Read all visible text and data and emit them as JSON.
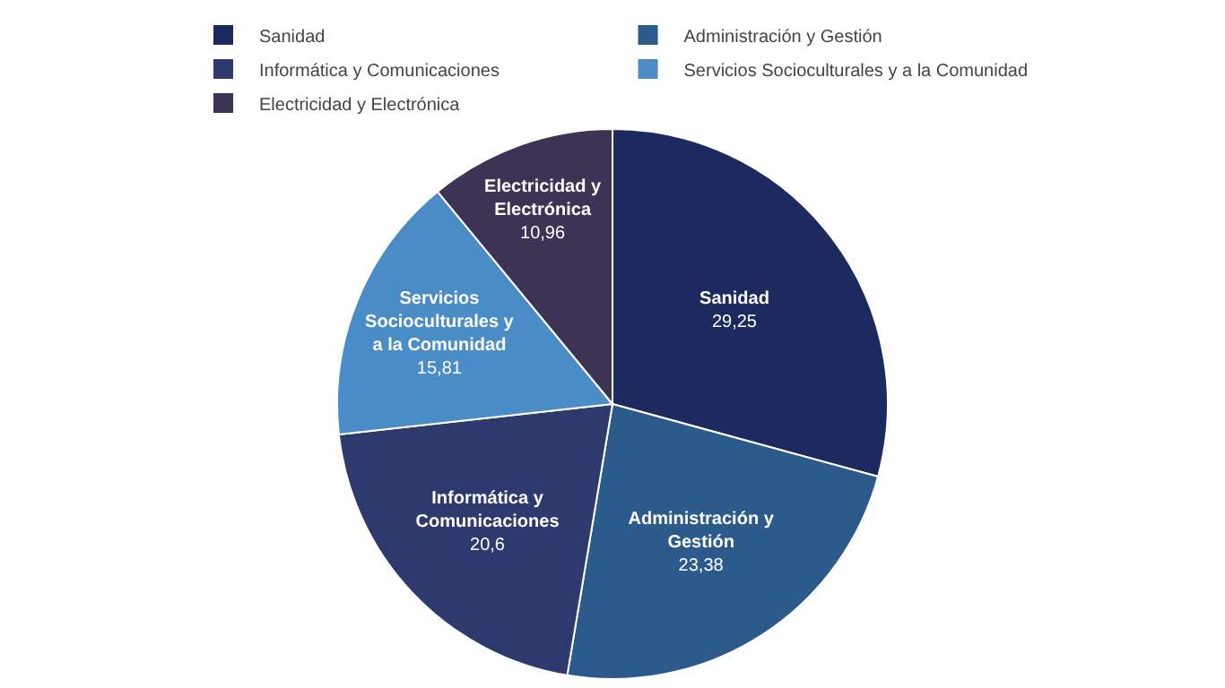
{
  "chart_data": {
    "type": "pie",
    "categories": [
      "Sanidad",
      "Administración y Gestión",
      "Informática y Comunicaciones",
      "Servicios Socioculturales y a la Comunidad",
      "Electricidad y Electrónica"
    ],
    "values": [
      29.25,
      23.38,
      20.6,
      15.81,
      10.96
    ],
    "value_labels": [
      "29,25",
      "23,38",
      "20,6",
      "15,81",
      "10,96"
    ],
    "colors": [
      "#1c2a5f",
      "#2c5a8a",
      "#2e3a6e",
      "#4a8cc6",
      "#3d3354"
    ],
    "legend": "top"
  }
}
